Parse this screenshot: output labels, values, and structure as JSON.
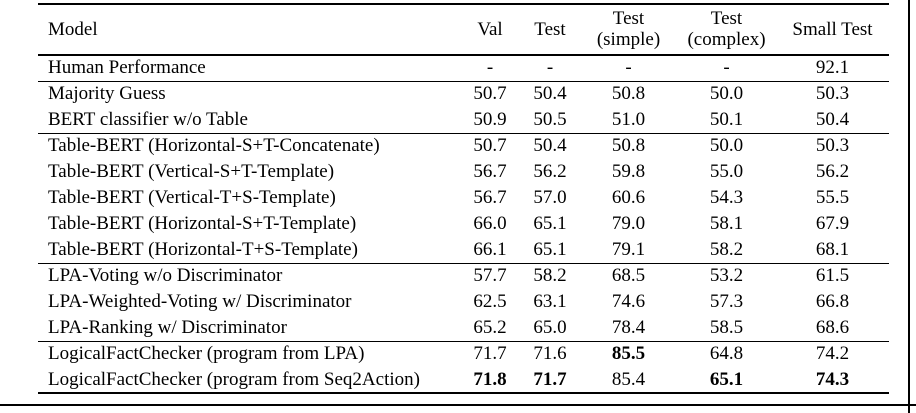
{
  "table": {
    "columns": [
      {
        "key": "model",
        "label": "Model"
      },
      {
        "key": "val",
        "label": "Val"
      },
      {
        "key": "test",
        "label": "Test"
      },
      {
        "key": "test_simple",
        "label": "Test\n(simple)"
      },
      {
        "key": "test_complex",
        "label": "Test\n(complex)"
      },
      {
        "key": "small_test",
        "label": "Small Test"
      }
    ],
    "groups": [
      {
        "name": "human",
        "rows": [
          {
            "model": "Human Performance",
            "values": [
              "-",
              "-",
              "-",
              "-",
              "92.1"
            ],
            "bold": []
          }
        ]
      },
      {
        "name": "baselines",
        "rows": [
          {
            "model": "Majority Guess",
            "values": [
              "50.7",
              "50.4",
              "50.8",
              "50.0",
              "50.3"
            ],
            "bold": []
          },
          {
            "model": "BERT classifier w/o Table",
            "values": [
              "50.9",
              "50.5",
              "51.0",
              "50.1",
              "50.4"
            ],
            "bold": []
          }
        ]
      },
      {
        "name": "table-bert",
        "rows": [
          {
            "model": "Table-BERT (Horizontal-S+T-Concatenate)",
            "values": [
              "50.7",
              "50.4",
              "50.8",
              "50.0",
              "50.3"
            ],
            "bold": []
          },
          {
            "model": "Table-BERT (Vertical-S+T-Template)",
            "values": [
              "56.7",
              "56.2",
              "59.8",
              "55.0",
              "56.2"
            ],
            "bold": []
          },
          {
            "model": "Table-BERT (Vertical-T+S-Template)",
            "values": [
              "56.7",
              "57.0",
              "60.6",
              "54.3",
              "55.5"
            ],
            "bold": []
          },
          {
            "model": "Table-BERT (Horizontal-S+T-Template)",
            "values": [
              "66.0",
              "65.1",
              "79.0",
              "58.1",
              "67.9"
            ],
            "bold": []
          },
          {
            "model": "Table-BERT (Horizontal-T+S-Template)",
            "values": [
              "66.1",
              "65.1",
              "79.1",
              "58.2",
              "68.1"
            ],
            "bold": []
          }
        ]
      },
      {
        "name": "lpa",
        "rows": [
          {
            "model": "LPA-Voting w/o Discriminator",
            "values": [
              "57.7",
              "58.2",
              "68.5",
              "53.2",
              "61.5"
            ],
            "bold": []
          },
          {
            "model": "LPA-Weighted-Voting w/ Discriminator",
            "values": [
              "62.5",
              "63.1",
              "74.6",
              "57.3",
              "66.8"
            ],
            "bold": []
          },
          {
            "model": "LPA-Ranking w/ Discriminator",
            "values": [
              "65.2",
              "65.0",
              "78.4",
              "58.5",
              "68.6"
            ],
            "bold": []
          }
        ]
      },
      {
        "name": "logicalfactchecker",
        "rows": [
          {
            "model": "LogicalFactChecker (program from LPA)",
            "values": [
              "71.7",
              "71.6",
              "85.5",
              "64.8",
              "74.2"
            ],
            "bold": [
              2
            ]
          },
          {
            "model": "LogicalFactChecker (program from Seq2Action)",
            "values": [
              "71.8",
              "71.7",
              "85.4",
              "65.1",
              "74.3"
            ],
            "bold": [
              0,
              1,
              3,
              4
            ]
          }
        ]
      }
    ]
  }
}
